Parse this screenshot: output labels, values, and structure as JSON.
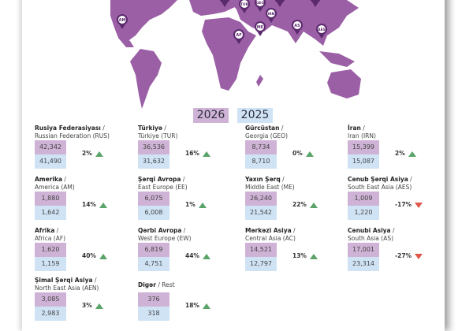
{
  "years": {
    "current": "2026",
    "previous": "2025"
  },
  "map_pins": [
    "AM",
    "TUR",
    "GEO",
    "IRN",
    "ME",
    "AF",
    "AS",
    "AES"
  ],
  "colors": {
    "map": "#9b5fa5",
    "pin": "#5b2a6e",
    "current": "#cfb3d6",
    "previous": "#cfe3f5",
    "up": "#5aa469",
    "down": "#e0584a"
  },
  "regions": [
    {
      "az": "Rusiya Federasiyası",
      "en": "Russian Federation (RUS)",
      "v2026": "42,342",
      "v2025": "41,490",
      "change": "2%",
      "trend": "up"
    },
    {
      "az": "Türkiyə",
      "en": "Türkiye (TUR)",
      "v2026": "36,536",
      "v2025": "31,632",
      "change": "16%",
      "trend": "up"
    },
    {
      "az": "Gürcüstan",
      "en": "Georgia (GEO)",
      "v2026": "8,734",
      "v2025": "8,710",
      "change": "0%",
      "trend": "up"
    },
    {
      "az": "İran",
      "en": "Iran (IRN)",
      "v2026": "15,399",
      "v2025": "15,087",
      "change": "2%",
      "trend": "up"
    },
    {
      "az": "Amerika",
      "en": "America (AM)",
      "v2026": "1,880",
      "v2025": "1,642",
      "change": "14%",
      "trend": "up"
    },
    {
      "az": "Şərqi Avropa",
      "en": "East Europe (EE)",
      "v2026": "6,075",
      "v2025": "6,008",
      "change": "1%",
      "trend": "up"
    },
    {
      "az": "Yaxın Şərq",
      "en": "Middle East  (ME)",
      "v2026": "26,240",
      "v2025": "21,542",
      "change": "22%",
      "trend": "up"
    },
    {
      "az": "Cənub Şərqi Asiya",
      "en": "South East Asia (AES)",
      "v2026": "1,009",
      "v2025": "1,220",
      "change": "-17%",
      "trend": "down"
    },
    {
      "az": "Afrika",
      "en": "Africa (AF)",
      "v2026": "1,620",
      "v2025": "1,159",
      "change": "40%",
      "trend": "up"
    },
    {
      "az": "Qərbi Avropa",
      "en": "West Europe (EW)",
      "v2026": "6,819",
      "v2025": "4,751",
      "change": "44%",
      "trend": "up"
    },
    {
      "az": "Mərkəzi Asiya",
      "en": "Central Asia  (AC)",
      "v2026": "14,521",
      "v2025": "12,797",
      "change": "13%",
      "trend": "up"
    },
    {
      "az": "Cənubi Asiya",
      "en": "South Asia  (AS)",
      "v2026": "17,001",
      "v2025": "23,314",
      "change": "-27%",
      "trend": "down"
    },
    {
      "az": "Şimal Şərqi Asiya",
      "en": "North East Asia (AEN)",
      "v2026": "3,085",
      "v2025": "2,983",
      "change": "3%",
      "trend": "up"
    },
    {
      "az": "Digər",
      "en": "Rest",
      "v2026": "376",
      "v2025": "318",
      "change": "18%",
      "trend": "up",
      "inline": true
    }
  ]
}
